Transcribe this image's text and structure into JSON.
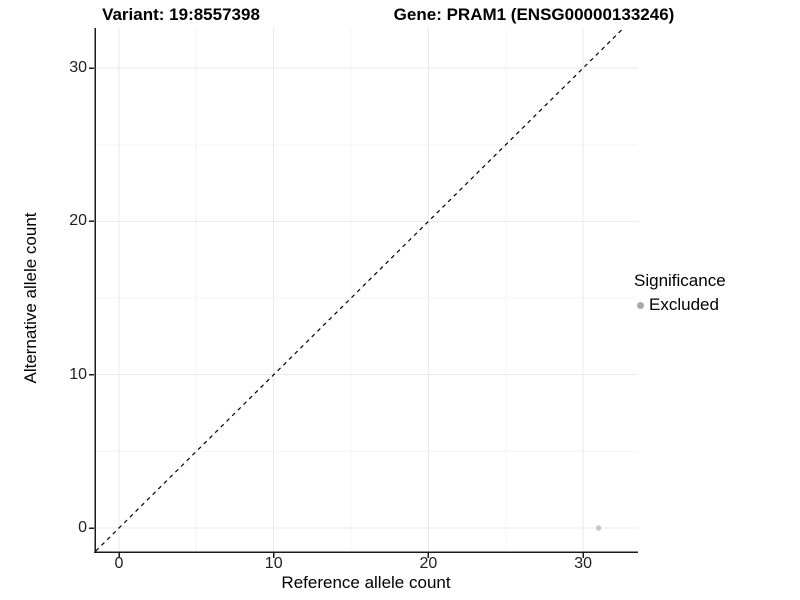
{
  "chart_data": {
    "type": "scatter",
    "titles": {
      "variant": "Variant: 19:8557398",
      "gene": "Gene: PRAM1 (ENSG00000133246)"
    },
    "xlabel": "Reference allele count",
    "ylabel": "Alternative allele count",
    "x_ticks": [
      0,
      10,
      20,
      30
    ],
    "y_ticks": [
      0,
      10,
      20,
      30
    ],
    "x_minor_ticks": [
      5,
      15,
      25
    ],
    "y_minor_ticks": [
      5,
      15,
      25
    ],
    "xlim": [
      -1.6,
      33.6
    ],
    "ylim": [
      -1.6,
      33.0
    ],
    "grid": true,
    "legend_position": "right",
    "legend": {
      "title": "Significance",
      "items": [
        {
          "label": "Excluded",
          "color": "#a8a8a8"
        }
      ]
    },
    "points": [
      {
        "x": 31,
        "y": 0,
        "significance": "Excluded",
        "color": "#c4c4c4"
      }
    ],
    "identity_line": {
      "style": "dashed",
      "slope": 1,
      "intercept": 0,
      "color": "#000000"
    },
    "colors": {
      "axis_line": "#1a1a1a",
      "tick_mark": "#1a1a1a",
      "grid_major": "#e9e9e9",
      "grid_minor": "#f4f4f4",
      "panel_background": "#ffffff"
    }
  }
}
